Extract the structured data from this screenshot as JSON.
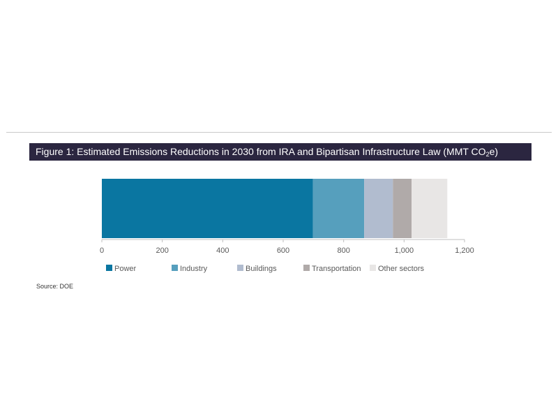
{
  "figure": {
    "title_pre": "Figure 1: Estimated Emissions Reductions in 2030 from IRA and Bipartisan Infrastructure Law (MMT CO",
    "title_sub": "2",
    "title_post": "e)"
  },
  "source": "Source: DOE",
  "chart_data": {
    "type": "bar",
    "orientation": "horizontal",
    "stacked": true,
    "categories": [
      ""
    ],
    "series": [
      {
        "name": "Power",
        "values": [
          698
        ],
        "color": "#0a76a1"
      },
      {
        "name": "Industry",
        "values": [
          170
        ],
        "color": "#569fbd"
      },
      {
        "name": "Buildings",
        "values": [
          95
        ],
        "color": "#b1bccf"
      },
      {
        "name": "Transportation",
        "values": [
          62
        ],
        "color": "#b0aaa9"
      },
      {
        "name": "Other sectors",
        "values": [
          118
        ],
        "color": "#e8e6e5"
      }
    ],
    "xlim": [
      0,
      1200
    ],
    "xticks": [
      0,
      200,
      400,
      600,
      800,
      1000,
      1200
    ],
    "xtick_labels": [
      "0",
      "200",
      "400",
      "600",
      "800",
      "1,000",
      "1,200"
    ],
    "grid": false,
    "legend_position": "bottom"
  }
}
